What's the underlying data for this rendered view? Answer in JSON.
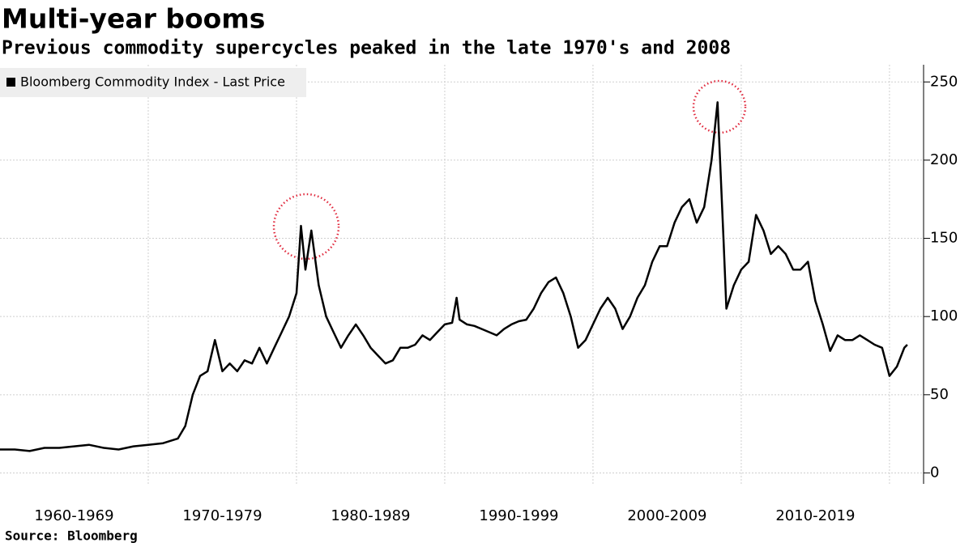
{
  "chart_data": {
    "type": "line",
    "title": "Multi-year booms",
    "subtitle": "Previous commodity supercycles peaked in the late 1970's and 2008",
    "source": "Source: Bloomberg",
    "series": [
      {
        "name": "Bloomberg Commodity Index - Last Price",
        "color": "#000000",
        "x": [
          1960,
          1961,
          1962,
          1963,
          1964,
          1965,
          1966,
          1967,
          1968,
          1969,
          1970,
          1971,
          1972,
          1972.5,
          1973,
          1973.5,
          1974,
          1974.5,
          1975,
          1975.5,
          1976,
          1976.5,
          1977,
          1977.5,
          1978,
          1978.5,
          1979,
          1979.5,
          1980,
          1980.3,
          1980.6,
          1981,
          1981.5,
          1982,
          1982.5,
          1983,
          1983.5,
          1984,
          1984.5,
          1985,
          1985.5,
          1986,
          1986.5,
          1987,
          1987.5,
          1988,
          1988.5,
          1989,
          1989.5,
          1990,
          1990.5,
          1990.8,
          1991,
          1991.5,
          1992,
          1992.5,
          1993,
          1993.5,
          1994,
          1994.5,
          1995,
          1995.5,
          1996,
          1996.5,
          1997,
          1997.5,
          1998,
          1998.5,
          1999,
          1999.5,
          2000,
          2000.5,
          2001,
          2001.5,
          2002,
          2002.5,
          2003,
          2003.5,
          2004,
          2004.5,
          2005,
          2005.5,
          2006,
          2006.5,
          2007,
          2007.5,
          2008,
          2008.4,
          2008.8,
          2009,
          2009.5,
          2010,
          2010.5,
          2011,
          2011.5,
          2012,
          2012.5,
          2013,
          2013.5,
          2014,
          2014.5,
          2015,
          2015.5,
          2016,
          2016.5,
          2017,
          2017.5,
          2018,
          2018.5,
          2019,
          2019.5,
          2020,
          2020.5,
          2021,
          2021.2
        ],
        "values": [
          15,
          15,
          14,
          16,
          16,
          17,
          18,
          16,
          15,
          17,
          18,
          19,
          22,
          30,
          50,
          62,
          65,
          85,
          65,
          70,
          65,
          72,
          70,
          80,
          70,
          80,
          90,
          100,
          115,
          158,
          130,
          155,
          120,
          100,
          90,
          80,
          88,
          95,
          88,
          80,
          75,
          70,
          72,
          80,
          80,
          82,
          88,
          85,
          90,
          95,
          96,
          112,
          98,
          95,
          94,
          92,
          90,
          88,
          92,
          95,
          97,
          98,
          105,
          115,
          122,
          125,
          115,
          100,
          80,
          85,
          95,
          105,
          112,
          105,
          92,
          100,
          112,
          120,
          135,
          145,
          145,
          160,
          170,
          175,
          160,
          170,
          200,
          237,
          150,
          105,
          120,
          130,
          135,
          165,
          155,
          140,
          145,
          140,
          130,
          130,
          135,
          110,
          95,
          78,
          88,
          85,
          85,
          88,
          85,
          82,
          80,
          62,
          68,
          80,
          82
        ]
      }
    ],
    "xlim": [
      1960,
      2022.3
    ],
    "xticks": [
      {
        "value": 1965,
        "label": "1960-1969"
      },
      {
        "value": 1975,
        "label": "1970-1979"
      },
      {
        "value": 1985,
        "label": "1980-1989"
      },
      {
        "value": 1995,
        "label": "1990-1999"
      },
      {
        "value": 2005,
        "label": "2000-2009"
      },
      {
        "value": 2015,
        "label": "2010-2019"
      }
    ],
    "ylim": [
      -7,
      261
    ],
    "yticks": [
      0,
      50,
      100,
      150,
      200,
      250
    ],
    "grid": true
  }
}
